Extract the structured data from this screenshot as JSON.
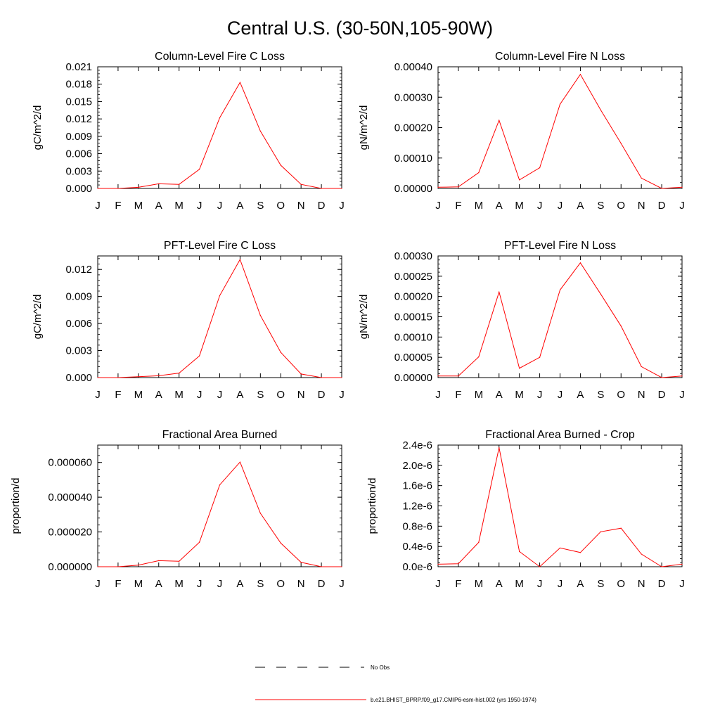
{
  "page_title": "Central U.S. (30-50N,105-90W)",
  "colors": {
    "series": "#ff0000",
    "obs": "#000000",
    "axes": "#000000"
  },
  "legend": {
    "entries": [
      {
        "label": "No Obs",
        "color": "#000000",
        "style": "dashed"
      },
      {
        "label": "b.e21.BHIST_BPRP.f09_g17.CMIP6-esm-hist.002 (yrs 1950-1974)",
        "color": "#ff0000",
        "style": "solid"
      }
    ]
  },
  "chart_data": [
    {
      "type": "line",
      "title": "Column-Level Fire C Loss",
      "xlabel": "",
      "ylabel": "gC/m^2/d",
      "categories": [
        "J",
        "F",
        "M",
        "A",
        "M",
        "J",
        "J",
        "A",
        "S",
        "O",
        "N",
        "D",
        "J"
      ],
      "ylim": [
        0,
        0.021
      ],
      "yticks": [
        "0.000",
        "0.003",
        "0.006",
        "0.009",
        "0.012",
        "0.015",
        "0.018",
        "0.021"
      ],
      "grid": false,
      "series": [
        {
          "values": [
            0.0,
            0.0,
            0.0002,
            0.0008,
            0.0007,
            0.0033,
            0.0122,
            0.0183,
            0.0099,
            0.004,
            0.0007,
            0.0,
            0.0
          ]
        }
      ]
    },
    {
      "type": "line",
      "title": "Column-Level Fire N Loss",
      "xlabel": "",
      "ylabel": "gN/m^2/d",
      "categories": [
        "J",
        "F",
        "M",
        "A",
        "M",
        "J",
        "J",
        "A",
        "S",
        "O",
        "N",
        "D",
        "J"
      ],
      "ylim": [
        0,
        0.0004
      ],
      "yticks": [
        "0.00000",
        "0.00010",
        "0.00020",
        "0.00030",
        "0.00040"
      ],
      "grid": false,
      "series": [
        {
          "values": [
            4e-06,
            5e-06,
            5.2e-05,
            0.000224,
            2.8e-05,
            6.8e-05,
            0.000277,
            0.000375,
            0.000258,
            0.000148,
            3.4e-05,
            0.0,
            4e-06
          ]
        }
      ]
    },
    {
      "type": "line",
      "title": "PFT-Level Fire C Loss",
      "xlabel": "",
      "ylabel": "gC/m^2/d",
      "categories": [
        "J",
        "F",
        "M",
        "A",
        "M",
        "J",
        "J",
        "A",
        "S",
        "O",
        "N",
        "D",
        "J"
      ],
      "ylim": [
        0,
        0.0135
      ],
      "yticks": [
        "0.000",
        "0.003",
        "0.006",
        "0.009",
        "0.012"
      ],
      "grid": false,
      "series": [
        {
          "values": [
            0.0,
            0.0,
            0.0001,
            0.0002,
            0.0005,
            0.0024,
            0.0091,
            0.0131,
            0.0069,
            0.0028,
            0.0004,
            0.0,
            0.0
          ]
        }
      ]
    },
    {
      "type": "line",
      "title": "PFT-Level Fire N Loss",
      "xlabel": "",
      "ylabel": "gN/m^2/d",
      "categories": [
        "J",
        "F",
        "M",
        "A",
        "M",
        "J",
        "J",
        "A",
        "S",
        "O",
        "N",
        "D",
        "J"
      ],
      "ylim": [
        0,
        0.0003
      ],
      "yticks": [
        "0.00000",
        "0.00005",
        "0.00010",
        "0.00015",
        "0.00020",
        "0.00025",
        "0.00030"
      ],
      "grid": false,
      "series": [
        {
          "values": [
            4e-06,
            4e-06,
            5.1e-05,
            0.000211,
            2.3e-05,
            5e-05,
            0.000216,
            0.000283,
            0.000206,
            0.000127,
            2.7e-05,
            0.0,
            4e-06
          ]
        }
      ]
    },
    {
      "type": "line",
      "title": "Fractional Area Burned",
      "xlabel": "",
      "ylabel": "proportion/d",
      "categories": [
        "J",
        "F",
        "M",
        "A",
        "M",
        "J",
        "J",
        "A",
        "S",
        "O",
        "N",
        "D",
        "J"
      ],
      "ylim": [
        0,
        7e-05
      ],
      "yticks": [
        "0.000000",
        "0.000020",
        "0.000040",
        "0.000060"
      ],
      "grid": false,
      "series": [
        {
          "values": [
            0.0,
            0.0,
            9e-07,
            3.5e-06,
            3.1e-06,
            1.41e-05,
            4.71e-05,
            6.02e-05,
            3.08e-05,
            1.36e-05,
            2.5e-06,
            0.0,
            0.0
          ]
        }
      ]
    },
    {
      "type": "line",
      "title": "Fractional Area Burned - Crop",
      "xlabel": "",
      "ylabel": "proportion/d",
      "categories": [
        "J",
        "F",
        "M",
        "A",
        "M",
        "J",
        "J",
        "A",
        "S",
        "O",
        "N",
        "D",
        "J"
      ],
      "ylim": [
        0,
        2.4e-06
      ],
      "yticks": [
        "0.0e-6",
        "0.4e-6",
        "0.8e-6",
        "1.2e-6",
        "1.6e-6",
        "2.0e-6",
        "2.4e-6"
      ],
      "grid": false,
      "series": [
        {
          "values": [
            5e-08,
            6e-08,
            4.8e-07,
            2.35e-06,
            3e-07,
            0.0,
            3.7e-07,
            2.8e-07,
            6.9e-07,
            7.6e-07,
            2.5e-07,
            0.0,
            5e-08
          ]
        }
      ]
    }
  ]
}
